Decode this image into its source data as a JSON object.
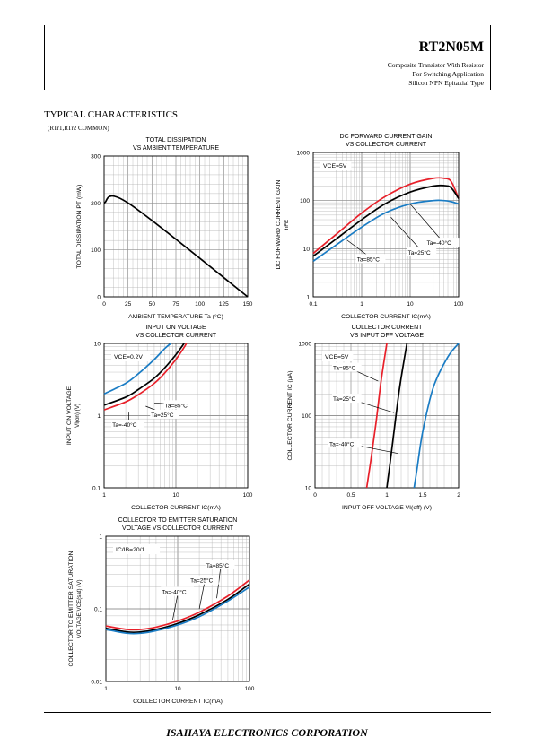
{
  "header": {
    "part_number": "RT2N05M",
    "line1": "Composite Transistor With Resistor",
    "line2": "For Switching Application",
    "line3": "Silicon NPN Epitaxial Type"
  },
  "section": {
    "title": "TYPICAL CHARACTERISTICS",
    "subtitle": "(RTr1,RTr2 COMMON)"
  },
  "footer": {
    "company": "ISAHAYA ELECTRONICS CORPORATION"
  },
  "colors": {
    "red": "#e8202a",
    "black": "#000000",
    "blue": "#1a7cc4",
    "grid": "#b0b0b0"
  },
  "chart_data": [
    {
      "type": "line",
      "title_lines": [
        "TOTAL DISSIPATION",
        "VS AMBIENT TEMPERATURE"
      ],
      "xlabel": "AMBIENT TEMPERATURE  Ta  (°C)",
      "ylabel": "TOTAL DISSIPATION   PT   (mW)",
      "xscale": "linear",
      "yscale": "linear",
      "xlim": [
        0,
        150
      ],
      "ylim": [
        0,
        300
      ],
      "xticks": [
        0,
        25,
        50,
        75,
        100,
        125,
        150
      ],
      "yticks": [
        0,
        100,
        200,
        300
      ],
      "grid": true,
      "series": [
        {
          "color": "black",
          "x": [
            0,
            25,
            150
          ],
          "y": [
            200,
            200,
            0
          ]
        }
      ],
      "annotations": []
    },
    {
      "type": "line",
      "title_lines": [
        "DC FORWARD CURRENT GAIN",
        "VS COLLECTOR CURRENT"
      ],
      "xlabel": "COLLECTOR CURRENT  IC(mA)",
      "ylabel": "DC FORWARD CURRENT GAIN",
      "ylabel2": "hFE",
      "xscale": "log",
      "yscale": "log",
      "xlim": [
        0.1,
        100
      ],
      "ylim": [
        1,
        1000
      ],
      "xticks": [
        0.1,
        1,
        10,
        100
      ],
      "xticklabels": [
        "0.1",
        "1",
        "10",
        "100"
      ],
      "yticks": [
        1,
        10,
        100,
        1000
      ],
      "yticklabels": [
        "1",
        "10",
        "100",
        "1000"
      ],
      "grid": true,
      "condition": "VCE=5V",
      "series": [
        {
          "color": "red",
          "x": [
            0.1,
            0.3,
            1,
            3,
            10,
            30,
            50,
            70,
            100
          ],
          "y": [
            8,
            20,
            55,
            120,
            220,
            290,
            290,
            250,
            110
          ]
        },
        {
          "color": "black",
          "x": [
            0.1,
            0.3,
            1,
            3,
            10,
            30,
            50,
            70,
            100
          ],
          "y": [
            7,
            16,
            40,
            85,
            150,
            200,
            205,
            185,
            110
          ]
        },
        {
          "color": "blue",
          "x": [
            0.1,
            0.3,
            1,
            3,
            10,
            30,
            50,
            70,
            100
          ],
          "y": [
            5.5,
            12,
            28,
            55,
            85,
            100,
            100,
            95,
            85
          ]
        }
      ],
      "annotations": [
        {
          "text": "Ta=85°C",
          "at": [
            0.8,
            5.5
          ],
          "tip": [
            0.5,
            15
          ]
        },
        {
          "text": "Ta=25°C",
          "at": [
            9,
            7.5
          ],
          "tip": [
            4,
            45
          ]
        },
        {
          "text": "Ta=-40°C",
          "at": [
            22,
            12
          ],
          "tip": [
            10,
            85
          ]
        }
      ]
    },
    {
      "type": "line",
      "title_lines": [
        "INPUT ON VOLTAGE",
        "VS COLLECTOR CURRENT"
      ],
      "xlabel": "COLLECTOR CURRENT  IC(mA)",
      "ylabel": "INPUT ON VOLTAGE",
      "ylabel2": "VI(on)  (V)",
      "xscale": "log",
      "yscale": "log",
      "xlim": [
        1,
        100
      ],
      "ylim": [
        0.1,
        10
      ],
      "xticks": [
        1,
        10,
        100
      ],
      "xticklabels": [
        "1",
        "10",
        "100"
      ],
      "yticks": [
        0.1,
        1,
        10
      ],
      "yticklabels": [
        "0.1",
        "1",
        "10"
      ],
      "grid": true,
      "condition": "VCE=0.2V",
      "series": [
        {
          "color": "blue",
          "x": [
            1,
            2,
            3,
            5,
            7,
            8.5
          ],
          "y": [
            2.0,
            2.8,
            3.8,
            6,
            8.5,
            10
          ]
        },
        {
          "color": "black",
          "x": [
            1,
            2,
            3,
            5,
            7,
            10,
            13
          ],
          "y": [
            1.4,
            1.8,
            2.3,
            3.3,
            4.6,
            7,
            10
          ]
        },
        {
          "color": "red",
          "x": [
            1,
            2,
            3,
            5,
            7,
            10,
            13,
            14
          ],
          "y": [
            1.2,
            1.55,
            1.95,
            2.8,
            3.9,
            6,
            8.8,
            10
          ]
        }
      ],
      "annotations": [
        {
          "text": "Ta=85°C",
          "at": [
            7,
            1.3
          ],
          "tip": [
            5,
            1.5
          ]
        },
        {
          "text": "Ta=25°C",
          "at": [
            4.5,
            0.96
          ],
          "tip": [
            3.8,
            1.35
          ]
        },
        {
          "text": "Ta=-40°C",
          "at": [
            1.3,
            0.7
          ],
          "tip": [
            2.2,
            1.1
          ]
        }
      ]
    },
    {
      "type": "line",
      "title_lines": [
        "COLLECTOR CURRENT",
        "VS INPUT OFF VOLTAGE"
      ],
      "xlabel": "INPUT OFF VOLTAGE  VI(off)  (V)",
      "ylabel": "COLLECTOR CURRENT IC (μA)",
      "xscale": "linear",
      "yscale": "log",
      "xlim": [
        0,
        2
      ],
      "ylim": [
        10,
        1000
      ],
      "xticks": [
        0,
        0.5,
        1,
        1.5,
        2
      ],
      "xticklabels": [
        "0",
        "0.5",
        "1",
        "1.5",
        "2"
      ],
      "yticks": [
        10,
        100,
        1000
      ],
      "yticklabels": [
        "10",
        "100",
        "1000"
      ],
      "grid": true,
      "condition": "VCE=5V",
      "series": [
        {
          "color": "red",
          "x": [
            0.72,
            0.78,
            0.85,
            0.92,
            1.0
          ],
          "y": [
            10,
            25,
            80,
            300,
            1000
          ]
        },
        {
          "color": "black",
          "x": [
            1.0,
            1.04,
            1.1,
            1.18,
            1.28
          ],
          "y": [
            10,
            20,
            60,
            250,
            1000
          ]
        },
        {
          "color": "blue",
          "x": [
            1.38,
            1.42,
            1.5,
            1.65,
            1.85,
            2.0
          ],
          "y": [
            10,
            18,
            60,
            250,
            650,
            1000
          ]
        }
      ],
      "annotations": [
        {
          "text": "Ta=85°C",
          "at": [
            0.25,
            430
          ],
          "tip": [
            0.88,
            300
          ]
        },
        {
          "text": "Ta=25°C",
          "at": [
            0.25,
            160
          ],
          "tip": [
            1.1,
            110
          ]
        },
        {
          "text": "Ta=-40°C",
          "at": [
            0.2,
            38
          ],
          "tip": [
            1.15,
            30
          ]
        }
      ]
    },
    {
      "type": "line",
      "title_lines": [
        "COLLECTOR TO EMITTER SATURATION",
        "VOLTAGE VS COLLECTOR CURRENT"
      ],
      "xlabel": "COLLECTOR CURRENT  IC(mA)",
      "ylabel": "COLLECTOR TO EMITTER SATURATION",
      "ylabel2": "VOLTAGE VCE(sat)  (V)",
      "xscale": "log",
      "yscale": "log",
      "xlim": [
        1,
        100
      ],
      "ylim": [
        0.01,
        1
      ],
      "xticks": [
        1,
        10,
        100
      ],
      "xticklabels": [
        "1",
        "10",
        "100"
      ],
      "yticks": [
        0.01,
        0.1,
        1
      ],
      "yticklabels": [
        "0.01",
        "0.1",
        "1"
      ],
      "grid": true,
      "condition": "IC/IB=20/1",
      "series": [
        {
          "color": "red",
          "x": [
            1,
            2,
            3,
            5,
            10,
            20,
            50,
            100
          ],
          "y": [
            0.058,
            0.052,
            0.052,
            0.056,
            0.068,
            0.09,
            0.15,
            0.25
          ]
        },
        {
          "color": "black",
          "x": [
            1,
            2,
            3,
            5,
            10,
            20,
            50,
            100
          ],
          "y": [
            0.054,
            0.048,
            0.048,
            0.052,
            0.063,
            0.083,
            0.135,
            0.22
          ]
        },
        {
          "color": "blue",
          "x": [
            1,
            2,
            3,
            5,
            10,
            20,
            50,
            100
          ],
          "y": [
            0.052,
            0.046,
            0.046,
            0.05,
            0.06,
            0.078,
            0.128,
            0.2
          ]
        }
      ],
      "annotations": [
        {
          "text": "Ta=85°C",
          "at": [
            25,
            0.37
          ],
          "tip": [
            35,
            0.14
          ]
        },
        {
          "text": "Ta=25°C",
          "at": [
            15,
            0.23
          ],
          "tip": [
            20,
            0.1
          ]
        },
        {
          "text": "Ta=-40°C",
          "at": [
            6,
            0.16
          ],
          "tip": [
            8.5,
            0.07
          ]
        }
      ]
    }
  ]
}
